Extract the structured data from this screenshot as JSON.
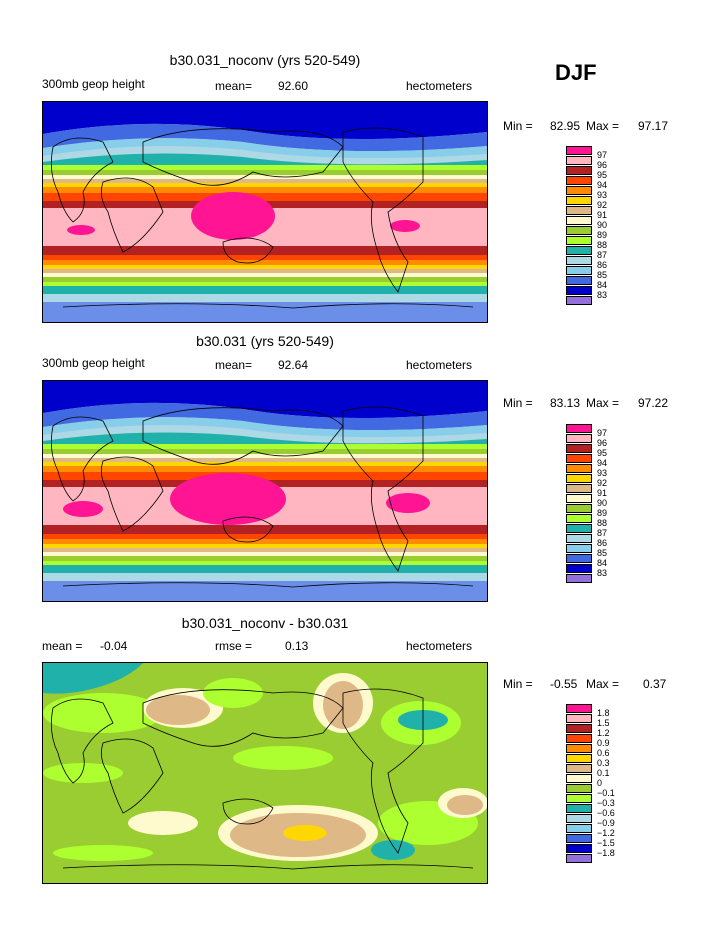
{
  "season": "DJF",
  "panels": [
    {
      "title": "b30.031_noconv (yrs 520-549)",
      "left_label": "300mb geop height",
      "mean_label": "mean=",
      "mean_value": "92.60",
      "unit": "hectometers",
      "min_label": "Min =",
      "min_value": "82.95",
      "max_label": "Max =",
      "max_value": "97.17"
    },
    {
      "title": "b30.031 (yrs 520-549)",
      "left_label": "300mb geop height",
      "mean_label": "mean=",
      "mean_value": "92.64",
      "unit": "hectometers",
      "min_label": "Min =",
      "min_value": "83.13",
      "max_label": "Max =",
      "max_value": "97.22"
    },
    {
      "title": "b30.031_noconv - b30.031",
      "left_label": "mean =",
      "left_value": "-0.04",
      "mid_label": "rmse =",
      "mid_value": "0.13",
      "unit": "hectometers",
      "min_label": "Min =",
      "min_value": "-0.55",
      "max_label": "Max =",
      "max_value": "0.37"
    }
  ],
  "legend_colors": [
    "#ff1493",
    "#ffb6c1",
    "#b22222",
    "#ff4500",
    "#ff8c00",
    "#ffd700",
    "#deb887",
    "#fffacd",
    "#9acd32",
    "#adff2f",
    "#20b2aa",
    "#add8e6",
    "#87ceeb",
    "#4169e1",
    "#0000cd",
    "#9370db"
  ],
  "chart_data": [
    {
      "type": "heatmap",
      "title": "b30.031_noconv (yrs 520-549)",
      "variable": "300mb geop height",
      "units": "hectometers",
      "mean": 92.6,
      "min": 82.95,
      "max": 97.17,
      "levels": [
        97,
        96,
        95,
        94,
        93,
        92,
        91,
        90,
        89,
        88,
        87,
        86,
        85,
        84,
        83
      ]
    },
    {
      "type": "heatmap",
      "title": "b30.031 (yrs 520-549)",
      "variable": "300mb geop height",
      "units": "hectometers",
      "mean": 92.64,
      "min": 83.13,
      "max": 97.22,
      "levels": [
        97,
        96,
        95,
        94,
        93,
        92,
        91,
        90,
        89,
        88,
        87,
        86,
        85,
        84,
        83
      ]
    },
    {
      "type": "heatmap",
      "title": "b30.031_noconv - b30.031",
      "units": "hectometers",
      "mean": -0.04,
      "rmse": 0.13,
      "min": -0.55,
      "max": 0.37,
      "levels": [
        1.8,
        1.5,
        1.2,
        0.9,
        0.6,
        0.3,
        0.1,
        0,
        -0.1,
        -0.3,
        -0.6,
        -0.9,
        -1.2,
        -1.5,
        -1.8
      ]
    }
  ]
}
